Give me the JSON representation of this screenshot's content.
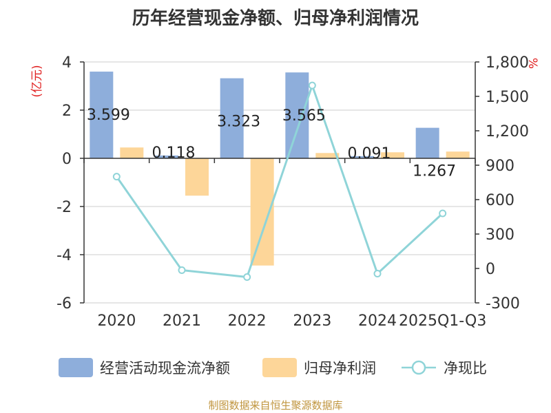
{
  "title": "历年经营现金净额、归母净利润情况",
  "source": "制图数据来自恒生聚源数据库",
  "chart_data": {
    "type": "bar",
    "categories": [
      "2020",
      "2021",
      "2022",
      "2023",
      "2024",
      "2025Q1-Q3"
    ],
    "left_axis": {
      "label": "(亿元)",
      "min": -6,
      "max": 4,
      "ticks": [
        "4",
        "2",
        "0",
        "-2",
        "-4",
        "-6"
      ]
    },
    "right_axis": {
      "label": "%",
      "min": -300,
      "max": 1800,
      "ticks": [
        "1,800",
        "1,500",
        "1,200",
        "900",
        "600",
        "300",
        "0",
        "-300"
      ]
    },
    "series": [
      {
        "name": "经营活动现金流净额",
        "kind": "bar",
        "axis": "left",
        "color": "#8eaedb",
        "values": [
          3.599,
          0.118,
          3.323,
          3.565,
          0.091,
          1.267
        ],
        "labels": [
          "3.599",
          "0.118",
          "3.323",
          "3.565",
          "0.091",
          "1.267"
        ]
      },
      {
        "name": "归母净利润",
        "kind": "bar",
        "axis": "left",
        "color": "#fdd699",
        "values": [
          0.45,
          -1.55,
          -4.45,
          0.22,
          0.25,
          0.28
        ]
      },
      {
        "name": "净现比",
        "kind": "line",
        "axis": "right",
        "color": "#8fd4d8",
        "values": [
          800,
          -15,
          -75,
          1595,
          -45,
          480
        ]
      }
    ],
    "grid": true,
    "legend": "bottom"
  }
}
